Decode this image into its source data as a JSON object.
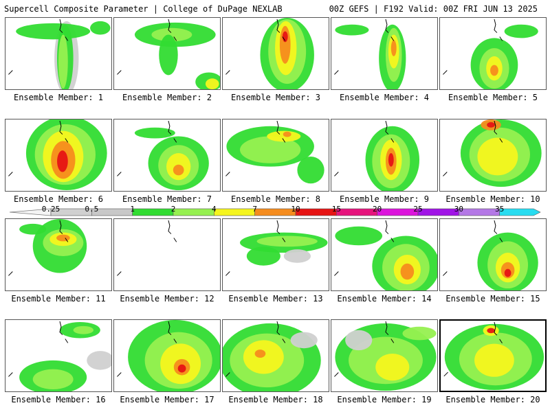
{
  "header": {
    "title_left": "Supercell Composite Parameter | College of DuPage NEXLAB",
    "title_right": "00Z GEFS | F192 Valid: 00Z FRI JUN 13 2025"
  },
  "colorbar": {
    "ticks": [
      "0.25",
      "0.5",
      "1",
      "2",
      "4",
      "7",
      "10",
      "15",
      "20",
      "25",
      "30",
      "35"
    ],
    "colors": [
      "#d0d0d0",
      "#c8c8c8",
      "#32dc32",
      "#96f050",
      "#f5f51e",
      "#f58c1e",
      "#e61414",
      "#e6147d",
      "#dc14dc",
      "#a014e6",
      "#b478e6",
      "#28dcf0"
    ]
  },
  "members": [
    {
      "label": "Ensemble Member: 1",
      "selected": false
    },
    {
      "label": "Ensemble Member: 2",
      "selected": false
    },
    {
      "label": "Ensemble Member: 3",
      "selected": false
    },
    {
      "label": "Ensemble Member: 4",
      "selected": false
    },
    {
      "label": "Ensemble Member: 5",
      "selected": false
    },
    {
      "label": "Ensemble Member: 6",
      "selected": false
    },
    {
      "label": "Ensemble Member: 7",
      "selected": false
    },
    {
      "label": "Ensemble Member: 8",
      "selected": false
    },
    {
      "label": "Ensemble Member: 9",
      "selected": false
    },
    {
      "label": "Ensemble Member: 10",
      "selected": false
    },
    {
      "label": "Ensemble Member: 11",
      "selected": false
    },
    {
      "label": "Ensemble Member: 12",
      "selected": false
    },
    {
      "label": "Ensemble Member: 13",
      "selected": false
    },
    {
      "label": "Ensemble Member: 14",
      "selected": false
    },
    {
      "label": "Ensemble Member: 15",
      "selected": false
    },
    {
      "label": "Ensemble Member: 16",
      "selected": false
    },
    {
      "label": "Ensemble Member: 17",
      "selected": false
    },
    {
      "label": "Ensemble Member: 18",
      "selected": false
    },
    {
      "label": "Ensemble Member: 19",
      "selected": false
    },
    {
      "label": "Ensemble Member: 20",
      "selected": true
    }
  ]
}
